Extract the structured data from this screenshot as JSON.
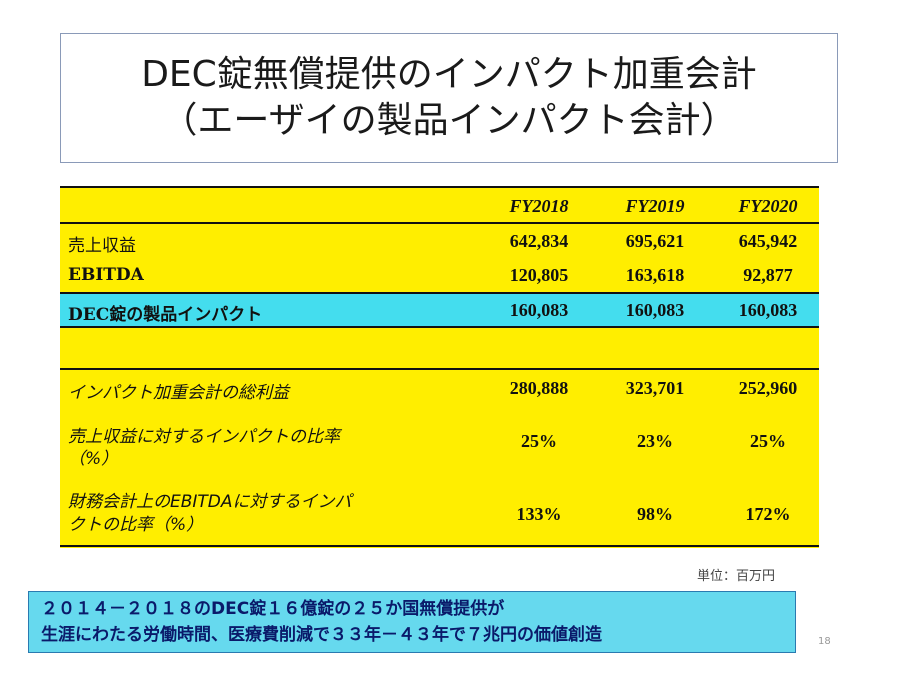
{
  "title": {
    "line1": "DEC錠無償提供のインパクト加重会計",
    "line2": "（エーザイの製品インパクト会計）"
  },
  "table": {
    "headers": [
      "FY2018",
      "FY2019",
      "FY2020"
    ],
    "rows": [
      {
        "label": "売上収益",
        "values": [
          "642,834",
          "695,621",
          "645,942"
        ]
      },
      {
        "label": "EBITDA",
        "values": [
          "120,805",
          "163,618",
          "92,877"
        ]
      },
      {
        "label": "DEC錠の製品インパクト",
        "values": [
          "160,083",
          "160,083",
          "160,083"
        ]
      },
      {
        "label": "インパクト加重会計の総利益",
        "values": [
          "280,888",
          "323,701",
          "252,960"
        ]
      },
      {
        "label_line1": "売上収益に対するインパクトの比率",
        "label_line2": "（%）",
        "values": [
          "25%",
          "23%",
          "25%"
        ]
      },
      {
        "label_line1": "財務会計上のEBITDAに対するインパ",
        "label_line2": "クトの比率（%）",
        "values": [
          "133%",
          "98%",
          "172%"
        ]
      }
    ]
  },
  "unit_note": "単位：百万円",
  "footer": {
    "line1": "２０１４－２０１８のDEC錠１６億錠の２５か国無償提供が",
    "line2": "生涯にわたる労働時間、医療費削減で３３年－４３年で７兆円の価値創造"
  },
  "page_number": "18",
  "colors": {
    "table_bg": "#ffee00",
    "highlight_row": "#44ddee",
    "footer_bg": "#66d9ee",
    "footer_text": "#0a1a6a"
  }
}
